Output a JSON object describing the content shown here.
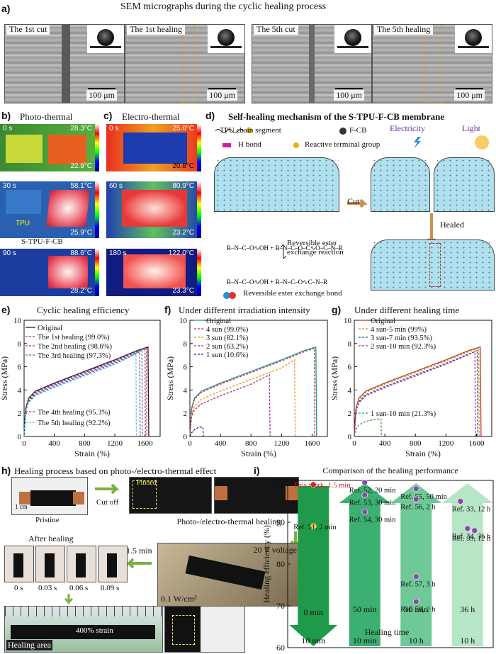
{
  "panel_a": {
    "label": "a)",
    "title": "SEM micrographs during the cyclic healing process",
    "images": [
      {
        "label": "The 1st cut",
        "scale": "100 μm"
      },
      {
        "label": "The 1st healing",
        "scale": "100 μm"
      },
      {
        "label": "The 5th cut",
        "scale": "100 μm"
      },
      {
        "label": "The 5th healing",
        "scale": "100 μm"
      }
    ]
  },
  "panel_b": {
    "label": "b)",
    "title": "Photo-thermal",
    "frames": [
      {
        "time": "0 s",
        "tmax": "28.3°C",
        "tmin": "22.9°C"
      },
      {
        "time": "30 s",
        "tmax": "58.1°C",
        "tmin": "25.9°C"
      },
      {
        "time": "90 s",
        "tmax": "88.6°C",
        "tmin": "28.2°C"
      }
    ],
    "tpu_label": "TPU",
    "sample_label": "S-TPU-F-CB"
  },
  "panel_c": {
    "label": "c)",
    "title": "Electro-thermal",
    "frames": [
      {
        "time": "0 s",
        "tmax": "25.0°C",
        "tmin": "20.8°C"
      },
      {
        "time": "60 s",
        "tmax": "80.9°C",
        "tmin": "23.2°C"
      },
      {
        "time": "180 s",
        "tmax": "122.0°C",
        "tmin": "23.3°C"
      }
    ]
  },
  "panel_d": {
    "label": "d)",
    "title": "Self-healing mechanism of the S-TPU-F-CB membrane",
    "legend": {
      "chain": "TPU chain segment",
      "fcb": "F-CB",
      "hbond": "H bond",
      "terminal": "Reactive terminal group",
      "ester_bond": "Reversible ester exchange bond"
    },
    "electricity": "Electricity",
    "light": "Light",
    "cut": "Cut",
    "healed": "Healed",
    "reaction": "Reversible ester exchange reaction"
  },
  "panel_e": {
    "label": "e)",
    "title": "Cyclic healing efficiency",
    "colors": [
      "#222222",
      "#c0392b",
      "#a8288a",
      "#3a78c8",
      "#b03090",
      "#30d8e0"
    ]
  },
  "panel_f": {
    "label": "f)",
    "title": "Under different irradiation intensity",
    "colors": [
      "#1aa078",
      "#d8186e",
      "#e0a000",
      "#a8288a",
      "#1a2a8a"
    ]
  },
  "panel_g": {
    "label": "g)",
    "title": "Under different healing time",
    "colors": [
      "#c0392b",
      "#c89020",
      "#2050b0",
      "#a8288a",
      "#3aa040"
    ]
  },
  "chart_data": [
    {
      "type": "line",
      "title": "Cyclic healing efficiency",
      "xlabel": "Strain (%)",
      "ylabel": "Stress (MPa)",
      "xlim": [
        0,
        1800
      ],
      "ylim": [
        0,
        10
      ],
      "xticks": [
        0,
        400,
        800,
        1200,
        1600
      ],
      "yticks": [
        0,
        2,
        4,
        6,
        8,
        10
      ],
      "series": [
        {
          "name": "Original",
          "x": [
            0,
            20,
            60,
            150,
            400,
            800,
            1200,
            1500,
            1640,
            1650
          ],
          "y": [
            0,
            2.4,
            3.3,
            3.9,
            4.6,
            5.6,
            6.6,
            7.4,
            7.7,
            0
          ]
        },
        {
          "name": "The 1st healing (99.0%)",
          "x": [
            0,
            20,
            60,
            150,
            400,
            800,
            1200,
            1500,
            1620,
            1625
          ],
          "y": [
            0,
            2.3,
            3.2,
            3.8,
            4.5,
            5.5,
            6.5,
            7.3,
            7.6,
            0
          ]
        },
        {
          "name": "The 2nd healing (98.6%)",
          "x": [
            0,
            20,
            60,
            150,
            400,
            800,
            1200,
            1500,
            1600,
            1605
          ],
          "y": [
            0,
            2.3,
            3.2,
            3.8,
            4.5,
            5.5,
            6.5,
            7.3,
            7.6,
            0
          ]
        },
        {
          "name": "The 3rd healing (97.3%)",
          "x": [
            0,
            20,
            60,
            150,
            400,
            800,
            1200,
            1500,
            1560,
            1565
          ],
          "y": [
            0,
            2.2,
            3.1,
            3.7,
            4.4,
            5.4,
            6.4,
            7.2,
            7.5,
            0
          ]
        },
        {
          "name": "The 4th healing (95.3%)",
          "x": [
            0,
            20,
            60,
            150,
            400,
            800,
            1200,
            1450,
            1530,
            1535
          ],
          "y": [
            0,
            2.1,
            3.0,
            3.6,
            4.3,
            5.3,
            6.3,
            7.0,
            7.3,
            0
          ]
        },
        {
          "name": "The 5th healing (92.2%)",
          "x": [
            0,
            20,
            60,
            150,
            400,
            800,
            1200,
            1420,
            1480,
            1485
          ],
          "y": [
            0,
            2.0,
            2.9,
            3.5,
            4.2,
            5.2,
            6.2,
            6.9,
            7.2,
            0
          ]
        }
      ]
    },
    {
      "type": "line",
      "title": "Under different irradiation intensity",
      "xlabel": "Strain (%)",
      "ylabel": "Stress (MPa)",
      "xlim": [
        0,
        1800
      ],
      "ylim": [
        0,
        10
      ],
      "xticks": [
        0,
        400,
        800,
        1200,
        1600
      ],
      "yticks": [
        0,
        2,
        4,
        6,
        8,
        10
      ],
      "series": [
        {
          "name": "Original",
          "x": [
            0,
            20,
            60,
            150,
            400,
            800,
            1200,
            1500,
            1650,
            1660
          ],
          "y": [
            0,
            2.4,
            3.3,
            3.9,
            4.6,
            5.6,
            6.6,
            7.4,
            7.7,
            0
          ]
        },
        {
          "name": "4 sun (99.0%)",
          "x": [
            0,
            20,
            60,
            150,
            400,
            800,
            1200,
            1500,
            1630,
            1635
          ],
          "y": [
            0,
            2.3,
            3.2,
            3.8,
            4.5,
            5.5,
            6.5,
            7.3,
            7.6,
            0
          ]
        },
        {
          "name": "3 sun (82.1%)",
          "x": [
            0,
            20,
            60,
            150,
            400,
            800,
            1200,
            1370,
            1380
          ],
          "y": [
            0,
            1.9,
            2.6,
            3.2,
            3.9,
            4.9,
            5.9,
            6.6,
            0
          ]
        },
        {
          "name": "2 sun (63.2%)",
          "x": [
            0,
            20,
            60,
            150,
            400,
            800,
            1040,
            1050
          ],
          "y": [
            0,
            1.6,
            2.3,
            2.8,
            3.5,
            4.5,
            5.3,
            0
          ]
        },
        {
          "name": "1 sun (10.6%)",
          "x": [
            0,
            20,
            60,
            120,
            170,
            175
          ],
          "y": [
            0,
            0.3,
            0.6,
            0.8,
            0.8,
            0
          ]
        }
      ]
    },
    {
      "type": "line",
      "title": "Under different healing time",
      "xlabel": "Strain (%)",
      "ylabel": "Stress (MPa)",
      "xlim": [
        0,
        1800
      ],
      "ylim": [
        0,
        10
      ],
      "xticks": [
        0,
        400,
        800,
        1200,
        1600
      ],
      "yticks": [
        0,
        2,
        4,
        6,
        8,
        10
      ],
      "series": [
        {
          "name": "Original",
          "x": [
            0,
            20,
            60,
            150,
            400,
            800,
            1200,
            1500,
            1650,
            1660
          ],
          "y": [
            0,
            2.4,
            3.3,
            3.9,
            4.6,
            5.6,
            6.6,
            7.4,
            7.7,
            0
          ]
        },
        {
          "name": "4 sun-5 min (99%)",
          "x": [
            0,
            20,
            60,
            150,
            400,
            800,
            1200,
            1500,
            1630,
            1635
          ],
          "y": [
            0,
            2.3,
            3.2,
            3.8,
            4.5,
            5.5,
            6.5,
            7.3,
            7.6,
            0
          ]
        },
        {
          "name": "3 sun-7 min (93.5%)",
          "x": [
            0,
            20,
            60,
            150,
            400,
            800,
            1200,
            1500,
            1610,
            1615
          ],
          "y": [
            0,
            2.2,
            3.0,
            3.6,
            4.3,
            5.3,
            6.3,
            7.1,
            7.4,
            0
          ]
        },
        {
          "name": "2 sun-10 min (92.3%)",
          "x": [
            0,
            20,
            60,
            150,
            400,
            800,
            1200,
            1480,
            1580,
            1585
          ],
          "y": [
            0,
            2.1,
            2.9,
            3.5,
            4.2,
            5.2,
            6.2,
            7.0,
            7.3,
            0
          ]
        },
        {
          "name": "1 sun-10 min (21.3%)",
          "x": [
            0,
            20,
            60,
            150,
            300,
            350,
            355
          ],
          "y": [
            0,
            0.6,
            1.0,
            1.3,
            1.5,
            1.5,
            0
          ]
        }
      ]
    },
    {
      "type": "scatter",
      "title": "Comparison of the healing performance",
      "ylabel": "Healing efficiency (%)",
      "ylim": [
        60,
        100
      ],
      "yticks": [
        60,
        70,
        80,
        90,
        100
      ],
      "groups": [
        {
          "top": "0 min",
          "bottom": "10 min",
          "color": "#1f9a4a",
          "points": [
            {
              "label": "This work, 1.5 min",
              "y": 99.0
            },
            {
              "label": "Ref. 51, 2 min",
              "y": 89.0
            }
          ]
        },
        {
          "top": "50 min",
          "bottom": "10 min",
          "color": "#3bb070",
          "points": [
            {
              "label": "Ref. 52, 20 min",
              "y": 99.5
            },
            {
              "label": "Ref. 53, 30 min",
              "y": 96.5
            },
            {
              "label": "Ref. 54, 30 min",
              "y": 92.5
            }
          ]
        },
        {
          "top": "50 min",
          "bottom": "10 h",
          "color": "#6fc898",
          "points": [
            {
              "label": "Ref. 55, 50 min",
              "y": 98.0
            },
            {
              "label": "Ref. 56, 2 h",
              "y": 95.5
            },
            {
              "label": "Ref. 57, 3 h",
              "y": 77.0
            },
            {
              "label": "Ref. 58, 2 h",
              "y": 71.0
            }
          ]
        },
        {
          "top": "36 h",
          "bottom": "10 h",
          "color": "#b7e6c7",
          "points": [
            {
              "label": "Ref. 33, 12 h",
              "y": 95.0
            },
            {
              "label": "Ref. 34, 36 h",
              "y": 88.5
            },
            {
              "label": "Ref. 59, 12 h",
              "y": 88.0
            }
          ]
        }
      ],
      "xlabel": "Healing time"
    }
  ],
  "panel_h": {
    "label": "h)",
    "title": "Healing process based on photo-/electro-thermal effect",
    "scale": "1 cm",
    "pristine": "Pristine",
    "cut_off": "Cut off",
    "pinned": "Pinned",
    "healing_step": "Photo-/electro-thermal healing",
    "voltage": "20 V voltage",
    "intensity": "0.1 W/cm²",
    "time": "1.5 min",
    "after": "After healing",
    "times": [
      "0 s",
      "0.03 s",
      "0.06 s",
      "0.09 s"
    ],
    "strain": "400% strain",
    "area": "Healing area"
  },
  "panel_i": {
    "label": "i)"
  }
}
